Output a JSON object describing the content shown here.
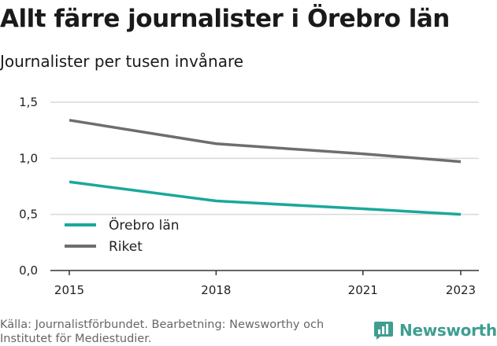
{
  "header": {
    "title": "Allt färre journalister i Örebro län",
    "subtitle": "Journalister per tusen invånare"
  },
  "chart_data": {
    "type": "line",
    "x": [
      2015,
      2018,
      2021,
      2023
    ],
    "x_tick_labels": [
      "2015",
      "2018",
      "2021",
      "2023"
    ],
    "ylim": [
      0,
      1.5
    ],
    "y_ticks": [
      0,
      0.5,
      1.0,
      1.5
    ],
    "y_tick_labels": [
      "0,0",
      "0,5",
      "1,0",
      "1,5"
    ],
    "grid": true,
    "legend_position": "bottom-left",
    "series": [
      {
        "name": "Örebro län",
        "color": "#1aa89b",
        "values": [
          0.79,
          0.62,
          0.55,
          0.5
        ]
      },
      {
        "name": "Riket",
        "color": "#6e6d72",
        "values": [
          1.34,
          1.13,
          1.04,
          0.97
        ]
      }
    ]
  },
  "footer": {
    "source": "Källa: Journalistförbundet. Bearbetning: Newsworthy och Institutet för Mediestudier."
  },
  "brand": {
    "name": "Newsworthy",
    "color": "#3e9e92"
  }
}
